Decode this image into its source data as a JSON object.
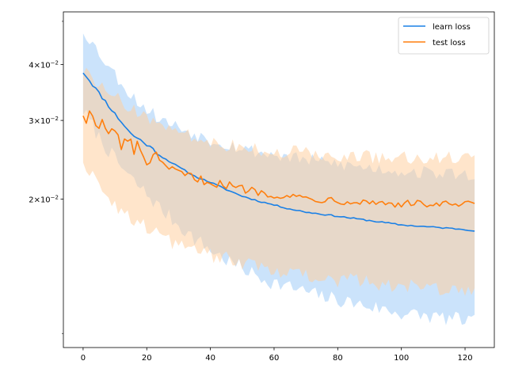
{
  "chart_data": {
    "type": "line",
    "title": "",
    "xlabel": "",
    "ylabel": "",
    "yscale": "log",
    "xlim": [
      -6.2,
      129.2
    ],
    "ylim": [
      0.0093,
      0.0525
    ],
    "grid": false,
    "legend_position": "top-right",
    "x_ticks": [
      {
        "value": 0,
        "label": "0"
      },
      {
        "value": 20,
        "label": "20"
      },
      {
        "value": 40,
        "label": "40"
      },
      {
        "value": 60,
        "label": "60"
      },
      {
        "value": 80,
        "label": "80"
      },
      {
        "value": 100,
        "label": "100"
      },
      {
        "value": 120,
        "label": "120"
      }
    ],
    "y_ticks": [
      {
        "value": 0.02,
        "label": "2×10⁻²",
        "mantissa": "2×10",
        "exponent": "−2"
      },
      {
        "value": 0.03,
        "label": "3×10⁻²",
        "mantissa": "3×10",
        "exponent": "−2"
      },
      {
        "value": 0.04,
        "label": "4×10⁻²",
        "mantissa": "4×10",
        "exponent": "−2"
      }
    ],
    "series": [
      {
        "name": "learn loss",
        "color": "#1a80e6",
        "band_color": "#a0ccf8",
        "anchors_x": [
          0,
          5,
          10,
          15,
          20,
          25,
          30,
          35,
          40,
          45,
          50,
          55,
          60,
          65,
          70,
          75,
          80,
          85,
          90,
          95,
          100,
          105,
          110,
          115,
          120,
          123
        ],
        "mean": [
          0.0385,
          0.0345,
          0.031,
          0.028,
          0.0265,
          0.0248,
          0.0236,
          0.0225,
          0.0218,
          0.021,
          0.0203,
          0.0198,
          0.0194,
          0.019,
          0.0187,
          0.0185,
          0.0183,
          0.0181,
          0.0179,
          0.0177,
          0.0175,
          0.0174,
          0.0173,
          0.0172,
          0.0171,
          0.017
        ],
        "upper": [
          0.0478,
          0.0425,
          0.038,
          0.0342,
          0.0318,
          0.03,
          0.029,
          0.028,
          0.0272,
          0.0266,
          0.026,
          0.0255,
          0.0251,
          0.0248,
          0.0245,
          0.0242,
          0.024,
          0.0237,
          0.0235,
          0.0233,
          0.0231,
          0.023,
          0.0229,
          0.0228,
          0.0227,
          0.0226
        ],
        "lower": [
          0.0315,
          0.0275,
          0.0245,
          0.0222,
          0.0205,
          0.0188,
          0.0175,
          0.0163,
          0.0154,
          0.0146,
          0.014,
          0.0134,
          0.013,
          0.0127,
          0.0124,
          0.0121,
          0.0119,
          0.0117,
          0.0115,
          0.0113,
          0.0111,
          0.011,
          0.0109,
          0.0108,
          0.0107,
          0.0106
        ]
      },
      {
        "name": "test loss",
        "color": "#ff7f0e",
        "band_color": "#ffcfa0",
        "anchors_x": [
          0,
          5,
          10,
          15,
          20,
          25,
          30,
          35,
          40,
          45,
          50,
          55,
          60,
          65,
          70,
          75,
          80,
          85,
          90,
          95,
          100,
          105,
          110,
          115,
          120,
          123
        ],
        "mean": [
          0.0315,
          0.0292,
          0.0275,
          0.0262,
          0.0248,
          0.0237,
          0.0229,
          0.0223,
          0.0218,
          0.0215,
          0.0211,
          0.0208,
          0.0205,
          0.0203,
          0.0201,
          0.02,
          0.0199,
          0.0198,
          0.0197,
          0.0196,
          0.0195,
          0.0195,
          0.0195,
          0.0194,
          0.0194,
          0.0194
        ],
        "upper": [
          0.0385,
          0.0365,
          0.0345,
          0.032,
          0.0305,
          0.0292,
          0.0282,
          0.0275,
          0.027,
          0.0265,
          0.0262,
          0.0259,
          0.0257,
          0.0255,
          0.0254,
          0.0252,
          0.0251,
          0.025,
          0.0249,
          0.0249,
          0.0248,
          0.0248,
          0.0247,
          0.0247,
          0.0247,
          0.0247
        ],
        "lower": [
          0.0245,
          0.0215,
          0.0195,
          0.0182,
          0.0172,
          0.0165,
          0.0158,
          0.0154,
          0.015,
          0.0147,
          0.0144,
          0.0141,
          0.0139,
          0.0137,
          0.0135,
          0.0133,
          0.0132,
          0.0131,
          0.013,
          0.0129,
          0.0128,
          0.0127,
          0.0127,
          0.0126,
          0.0126,
          0.0125
        ]
      }
    ]
  }
}
